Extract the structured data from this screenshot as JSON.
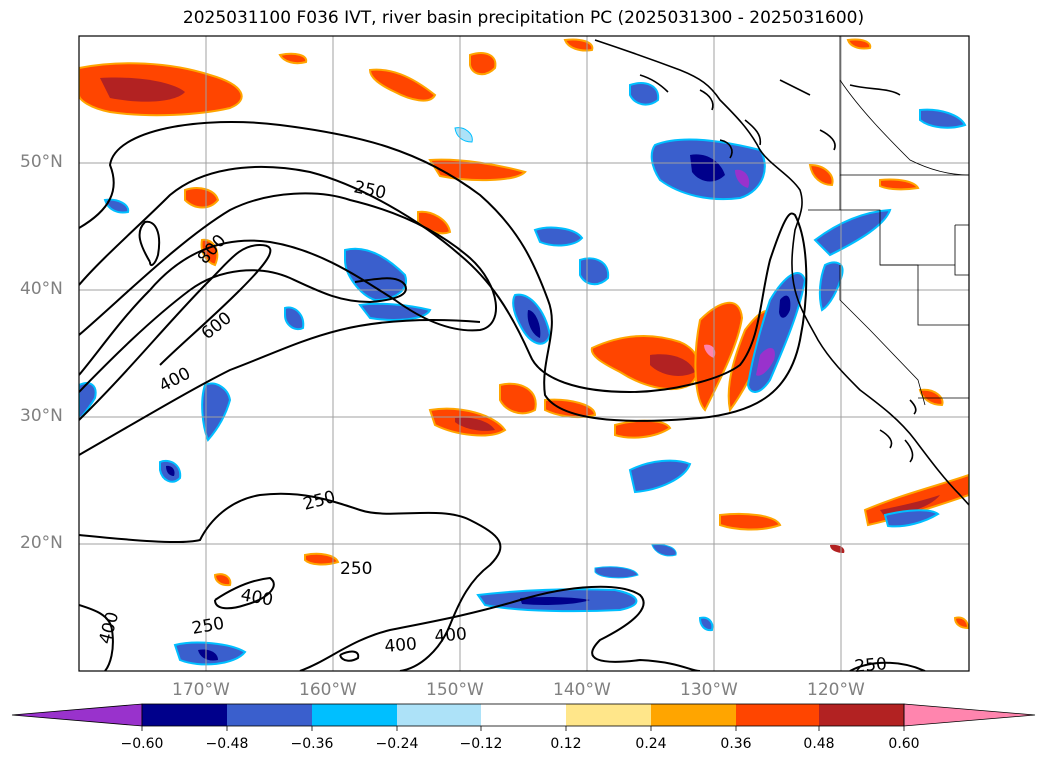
{
  "title": "2025031100 F036 IVT, river basin precipitation PC (2025031300 - 2025031600)",
  "lat_labels": [
    "50°N",
    "40°N",
    "30°N",
    "20°N"
  ],
  "lon_labels": [
    "170°W",
    "160°W",
    "150°W",
    "140°W",
    "130°W",
    "120°W"
  ],
  "contour_labels": [
    "250",
    "800",
    "600",
    "400",
    "250",
    "250",
    "400",
    "250",
    "400",
    "400",
    "400",
    "250"
  ],
  "colorbar": {
    "ticks": [
      "−0.60",
      "−0.48",
      "−0.36",
      "−0.24",
      "−0.12",
      "0.12",
      "0.24",
      "0.36",
      "0.48",
      "0.60"
    ],
    "colors": [
      "#9932CC",
      "#00008B",
      "#3A5FCD",
      "#00BFFF",
      "#ADE2F8",
      "#FFFFFF",
      "#FFE68A",
      "#FFA500",
      "#FF4500",
      "#B22222",
      "#FF85AE"
    ]
  },
  "colors": {
    "frame": "#000000",
    "grid": "#a0a0a0",
    "contour": "#000000",
    "coast": "#000000"
  }
}
